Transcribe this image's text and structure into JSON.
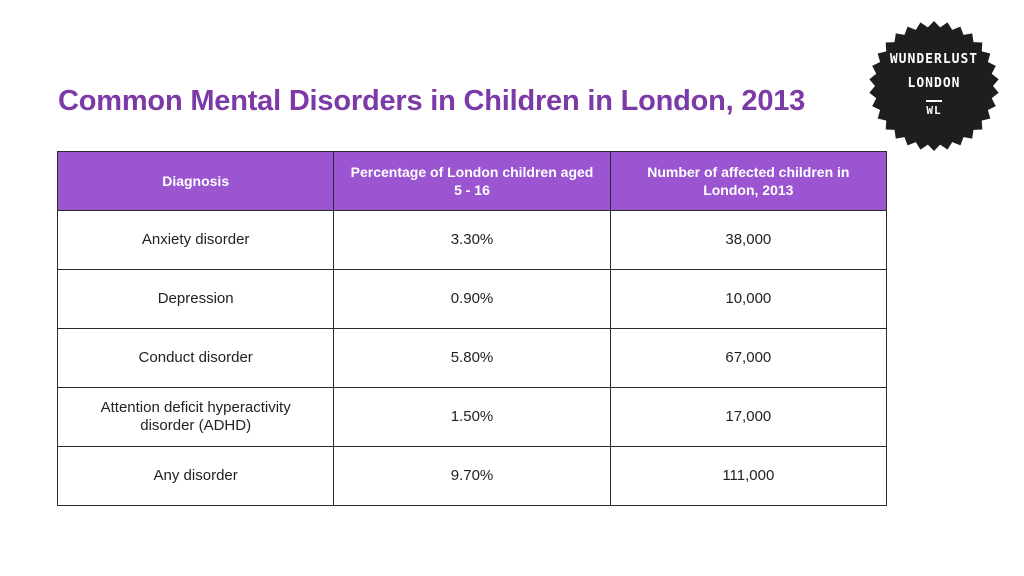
{
  "page": {
    "title": "Common Mental Disorders in Children in London, 2013"
  },
  "logo": {
    "line1": "WUNDERLUST",
    "line2": "LONDON",
    "mark": "WL",
    "color": "#1e1e1e"
  },
  "table": {
    "headers": [
      "Diagnosis",
      "Percentage of London children aged 5 - 16",
      "Number of affected children in London, 2013"
    ],
    "rows": [
      [
        "Anxiety disorder",
        "3.30%",
        "38,000"
      ],
      [
        "Depression",
        "0.90%",
        "10,000"
      ],
      [
        "Conduct disorder",
        "5.80%",
        "67,000"
      ],
      [
        "Attention deficit hyperactivity disorder (ADHD)",
        "1.50%",
        "17,000"
      ],
      [
        "Any disorder",
        "9.70%",
        "111,000"
      ]
    ]
  },
  "colors": {
    "title": "#7b3aa6",
    "header_bg": "#9b55d0",
    "border": "#2b2b2b"
  }
}
